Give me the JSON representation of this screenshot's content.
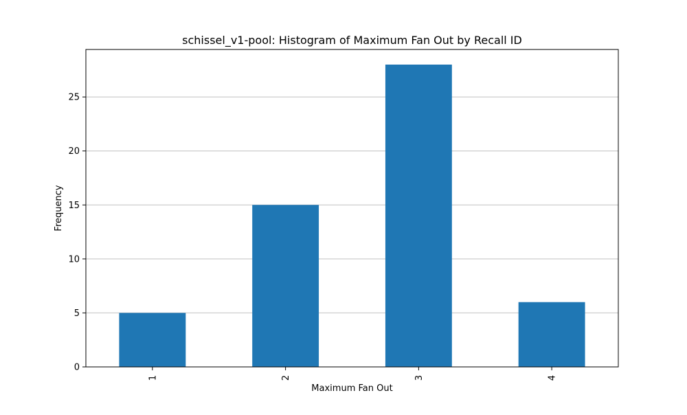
{
  "chart_data": {
    "type": "bar",
    "title": "schissel_v1-pool: Histogram of Maximum Fan Out by Recall ID",
    "xlabel": "Maximum Fan Out",
    "ylabel": "Frequency",
    "categories": [
      "1",
      "2",
      "3",
      "4"
    ],
    "values": [
      5,
      15,
      28,
      6
    ],
    "ylim": [
      0,
      29.4
    ],
    "yticks": [
      0,
      5,
      10,
      15,
      20,
      25
    ],
    "xtick_rotation": "vertical",
    "grid": "y-axis only",
    "legend": "none",
    "bar_color": "#1f77b4",
    "grid_color": "#c0c0c0"
  }
}
